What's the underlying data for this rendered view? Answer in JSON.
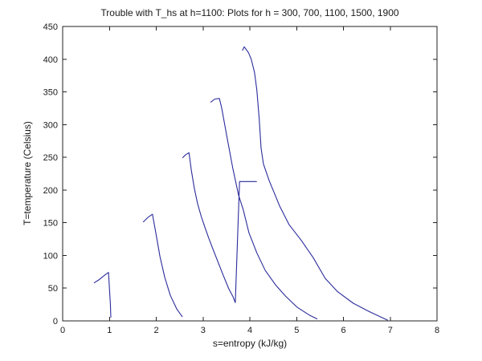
{
  "figure": {
    "background": "#ffffff"
  },
  "chart_data": {
    "type": "line",
    "title": "Trouble with T_hs at h=1100: Plots for h = 300, 700, 1100, 1500, 1900",
    "xlabel": "s=entropy (kJ/kg)",
    "ylabel": "T=temperature (Celsius)",
    "xlim": [
      0,
      8
    ],
    "ylim": [
      0,
      450
    ],
    "x_ticks": [
      0,
      1,
      2,
      3,
      4,
      5,
      6,
      7,
      8
    ],
    "y_ticks": [
      0,
      50,
      100,
      150,
      200,
      250,
      300,
      350,
      400,
      450
    ],
    "grid": false,
    "legend_position": "none",
    "line_color": "#2b2b9c",
    "axis_color": "#222222",
    "series": [
      {
        "name": "h=300",
        "points": [
          [
            0.67,
            58
          ],
          [
            0.78,
            63
          ],
          [
            0.9,
            70
          ],
          [
            0.98,
            74
          ],
          [
            1.0,
            48
          ],
          [
            1.02,
            26
          ],
          [
            1.03,
            5
          ]
        ]
      },
      {
        "name": "h=700",
        "points": [
          [
            1.72,
            151
          ],
          [
            1.82,
            158
          ],
          [
            1.92,
            163
          ],
          [
            1.99,
            135
          ],
          [
            2.08,
            98
          ],
          [
            2.18,
            67
          ],
          [
            2.3,
            39
          ],
          [
            2.44,
            18
          ],
          [
            2.56,
            6
          ]
        ]
      },
      {
        "name": "h=1100",
        "points": [
          [
            2.56,
            249
          ],
          [
            2.63,
            254
          ],
          [
            2.7,
            257
          ],
          [
            2.75,
            230
          ],
          [
            2.81,
            204
          ],
          [
            2.88,
            180
          ],
          [
            2.96,
            160
          ],
          [
            3.04,
            143
          ],
          [
            3.12,
            127
          ],
          [
            3.21,
            110
          ],
          [
            3.33,
            88
          ],
          [
            3.43,
            70
          ],
          [
            3.55,
            49
          ],
          [
            3.64,
            37
          ],
          [
            3.69,
            28
          ],
          [
            3.78,
            213
          ],
          [
            4.15,
            213
          ]
        ]
      },
      {
        "name": "h=1500",
        "points": [
          [
            3.16,
            334
          ],
          [
            3.25,
            339
          ],
          [
            3.35,
            340
          ],
          [
            3.4,
            325
          ],
          [
            3.52,
            278
          ],
          [
            3.64,
            232
          ],
          [
            3.76,
            192
          ],
          [
            3.86,
            170
          ],
          [
            3.98,
            135
          ],
          [
            4.15,
            104
          ],
          [
            4.33,
            77
          ],
          [
            4.55,
            55
          ],
          [
            4.76,
            38
          ],
          [
            5.01,
            21
          ],
          [
            5.27,
            9
          ],
          [
            5.44,
            3
          ]
        ]
      },
      {
        "name": "h=1900",
        "points": [
          [
            3.84,
            413
          ],
          [
            3.88,
            419
          ],
          [
            3.97,
            410
          ],
          [
            4.03,
            400
          ],
          [
            4.1,
            380
          ],
          [
            4.15,
            353
          ],
          [
            4.2,
            310
          ],
          [
            4.24,
            264
          ],
          [
            4.29,
            240
          ],
          [
            4.41,
            215
          ],
          [
            4.64,
            175
          ],
          [
            4.84,
            147
          ],
          [
            5.1,
            123
          ],
          [
            5.36,
            96
          ],
          [
            5.61,
            65
          ],
          [
            5.87,
            45
          ],
          [
            6.21,
            27
          ],
          [
            6.56,
            14
          ],
          [
            6.95,
            1
          ]
        ]
      }
    ]
  }
}
